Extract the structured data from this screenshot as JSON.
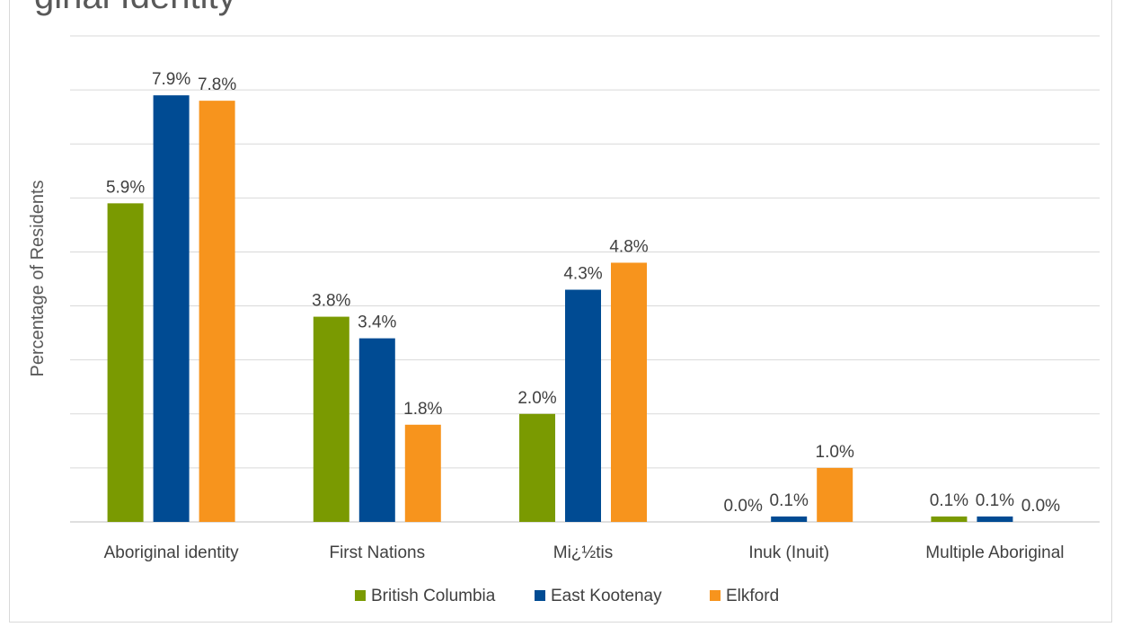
{
  "title_fragment": "ginal Identity",
  "chart_data": {
    "type": "bar",
    "title": "ginal Identity",
    "ylabel": "Percentage of Residents",
    "xlabel": "",
    "ylim": [
      0,
      9
    ],
    "grid": true,
    "legend_position": "bottom",
    "categories": [
      "Aboriginal identity",
      "First Nations",
      "Mi¿½tis",
      "Inuk (Inuit)",
      "Multiple Aboriginal"
    ],
    "series": [
      {
        "name": "British Columbia",
        "color": "#7a9a01",
        "values": [
          5.9,
          3.8,
          2.0,
          0.0,
          0.1
        ],
        "labels": [
          "5.9%",
          "3.8%",
          "2.0%",
          "0.0%",
          "0.1%"
        ]
      },
      {
        "name": "East Kootenay",
        "color": "#004b93",
        "values": [
          7.9,
          3.4,
          4.3,
          0.1,
          0.1
        ],
        "labels": [
          "7.9%",
          "3.4%",
          "4.3%",
          "0.1%",
          "0.1%"
        ]
      },
      {
        "name": "Elkford",
        "color": "#f7941d",
        "values": [
          7.8,
          1.8,
          4.8,
          1.0,
          0.0
        ],
        "labels": [
          "7.8%",
          "1.8%",
          "4.8%",
          "1.0%",
          "0.0%"
        ]
      }
    ]
  }
}
